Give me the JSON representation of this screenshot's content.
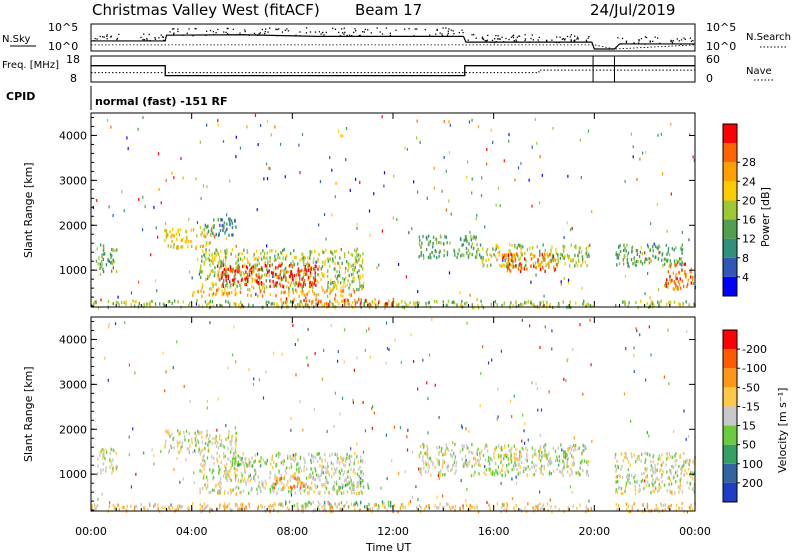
{
  "header": {
    "title": "Christmas Valley West (fitACF)",
    "beam": "Beam 17",
    "date": "24/Jul/2019"
  },
  "chart_data": [
    {
      "type": "line",
      "panel": "noise",
      "left_label": "N.Sky",
      "right_label": "N.Search",
      "left_ticks": [
        "10^5",
        "10^0"
      ],
      "right_ticks": [
        "10^5",
        "10^0"
      ],
      "x_range_hours": [
        0,
        24
      ],
      "series": [
        {
          "name": "N.Sky",
          "x": [
            0,
            2.95,
            3.0,
            6.0,
            9.0,
            12.0,
            14.8,
            14.9,
            19.9,
            20.0,
            20.8,
            21.0,
            24.0
          ],
          "y": [
            0.35,
            0.35,
            0.6,
            0.62,
            0.55,
            0.55,
            0.55,
            0.3,
            0.3,
            0.0,
            0.0,
            0.22,
            0.22
          ]
        },
        {
          "name": "N.Search",
          "x": [
            0,
            20.0,
            20.8,
            24.0
          ],
          "y": [
            0.18,
            0.18,
            0.0,
            0.18
          ]
        }
      ]
    },
    {
      "type": "line",
      "panel": "freq",
      "left_label": "Freq. [MHz]",
      "right_label": "Nave",
      "left_ticks": [
        "18",
        "8"
      ],
      "right_ticks": [
        "60",
        "0"
      ],
      "x_range_hours": [
        0,
        24
      ],
      "series": [
        {
          "name": "Freq",
          "x": [
            0,
            2.95,
            2.95,
            14.85,
            14.85,
            19.9,
            20.8,
            24.0
          ],
          "y": [
            14.5,
            14.5,
            10.0,
            10.0,
            14.5,
            14.5,
            14.5,
            14.5
          ]
        },
        {
          "name": "Nave",
          "x": [
            0,
            2.95,
            15.0,
            17.8,
            17.8,
            20.0,
            20.8,
            24.0
          ],
          "y": [
            20,
            20,
            20,
            20,
            27,
            27,
            27,
            27
          ]
        }
      ]
    },
    {
      "type": "heatmap",
      "panel": "power",
      "cpid_label": "CPID",
      "cpid_text": "normal (fast) -151 RF",
      "ylabel": "Slant Range [km]",
      "ylim": [
        180,
        4500
      ],
      "yticks": [
        1000,
        2000,
        3000,
        4000
      ],
      "colorbar": {
        "label": "Power [dB]",
        "ticks": [
          "4",
          "8",
          "12",
          "16",
          "20",
          "24",
          "28"
        ],
        "colors": [
          "#0000ff",
          "#2f56b8",
          "#32907a",
          "#50a050",
          "#a0c832",
          "#ffcc00",
          "#ffa000",
          "#ff6400",
          "#ff0000"
        ]
      },
      "regions": [
        {
          "t0": 0.2,
          "t1": 1.0,
          "r0": 1000,
          "r1": 1600,
          "level": 3
        },
        {
          "t0": 2.9,
          "t1": 4.8,
          "r0": 1500,
          "r1": 1950,
          "level": 5
        },
        {
          "t0": 4.5,
          "t1": 5.8,
          "r0": 1800,
          "r1": 2200,
          "level": 2
        },
        {
          "t0": 4.3,
          "t1": 10.8,
          "r0": 600,
          "r1": 1500,
          "level": 4
        },
        {
          "t0": 5.0,
          "t1": 9.0,
          "r0": 650,
          "r1": 1150,
          "level": 8
        },
        {
          "t0": 4.0,
          "t1": 10.5,
          "r0": 450,
          "r1": 600,
          "level": 6
        },
        {
          "t0": 0.0,
          "t1": 24.0,
          "r0": 200,
          "r1": 350,
          "level": 4
        },
        {
          "t0": 7.5,
          "t1": 12.0,
          "r0": 250,
          "r1": 400,
          "level": 7
        },
        {
          "t0": 13.0,
          "t1": 15.5,
          "r0": 1300,
          "r1": 1800,
          "level": 3
        },
        {
          "t0": 15.5,
          "t1": 19.8,
          "r0": 1100,
          "r1": 1600,
          "level": 4
        },
        {
          "t0": 16.3,
          "t1": 18.5,
          "r0": 1000,
          "r1": 1400,
          "level": 7
        },
        {
          "t0": 20.8,
          "t1": 23.5,
          "r0": 1100,
          "r1": 1600,
          "level": 3
        },
        {
          "t0": 22.8,
          "t1": 24.0,
          "r0": 600,
          "r1": 1200,
          "level": 7
        }
      ]
    },
    {
      "type": "heatmap",
      "panel": "velocity",
      "ylabel": "Slant Range [km]",
      "ylim": [
        180,
        4500
      ],
      "yticks": [
        1000,
        2000,
        3000,
        4000
      ],
      "xlabel": "Time UT",
      "xticks": [
        "00:00",
        "04:00",
        "08:00",
        "12:00",
        "16:00",
        "20:00",
        "00:00"
      ],
      "colorbar": {
        "label": "Velocity [m s⁻¹]",
        "ticks": [
          "200",
          "100",
          "50",
          "15",
          "-15",
          "-50",
          "-100",
          "-200"
        ],
        "colors": [
          "#1e3cc8",
          "#3264a0",
          "#32a064",
          "#6acc3a",
          "#c8c8c8",
          "#ffc846",
          "#ff9614",
          "#ff5a00",
          "#ff0000"
        ]
      },
      "regions": [
        {
          "t0": 0.2,
          "t1": 1.0,
          "r0": 1000,
          "r1": 1600,
          "level": 4
        },
        {
          "t0": 2.9,
          "t1": 5.8,
          "r0": 1500,
          "r1": 2000,
          "level": 4
        },
        {
          "t0": 4.3,
          "t1": 10.8,
          "r0": 600,
          "r1": 1500,
          "level": 4
        },
        {
          "t0": 5.5,
          "t1": 7.0,
          "r0": 1200,
          "r1": 1400,
          "level": 3
        },
        {
          "t0": 7.2,
          "t1": 8.5,
          "r0": 700,
          "r1": 1000,
          "level": 6
        },
        {
          "t0": 9.5,
          "t1": 11.0,
          "r0": 700,
          "r1": 900,
          "level": 3
        },
        {
          "t0": 0.0,
          "t1": 24.0,
          "r0": 200,
          "r1": 380,
          "level": 5
        },
        {
          "t0": 7.5,
          "t1": 12.0,
          "r0": 300,
          "r1": 420,
          "level": 3
        },
        {
          "t0": 13.0,
          "t1": 19.8,
          "r0": 1000,
          "r1": 1700,
          "level": 4
        },
        {
          "t0": 20.8,
          "t1": 24.0,
          "r0": 600,
          "r1": 1500,
          "level": 4
        }
      ]
    }
  ]
}
